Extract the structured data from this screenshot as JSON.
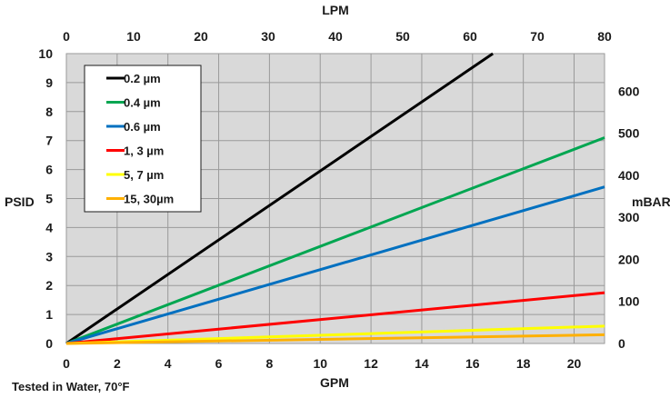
{
  "chart_data": {
    "type": "line",
    "xlabel": "GPM",
    "x2label": "LPM",
    "ylabel": "PSID",
    "y2label": "mBAR",
    "footnote": "Tested in Water, 70°F",
    "xlim": [
      0,
      21.2
    ],
    "ylim": [
      0,
      10
    ],
    "x2lim": [
      0,
      80
    ],
    "y2lim": [
      0,
      689.5
    ],
    "xticks": [
      0,
      2,
      4,
      6,
      8,
      10,
      12,
      14,
      16,
      18,
      20
    ],
    "yticks": [
      0,
      1,
      2,
      3,
      4,
      5,
      6,
      7,
      8,
      9,
      10
    ],
    "x2ticks": [
      0,
      10,
      20,
      30,
      40,
      50,
      60,
      70,
      80
    ],
    "y2ticks": [
      0,
      100,
      200,
      300,
      400,
      500,
      600
    ],
    "grid": true,
    "background": "#d9d9d9",
    "legend_position": "top-left",
    "series": [
      {
        "name": "0.2 µm",
        "color": "#000000",
        "x": [
          0,
          16.8
        ],
        "y": [
          0,
          10
        ]
      },
      {
        "name": "0.4 µm",
        "color": "#00a651",
        "x": [
          0,
          21.2
        ],
        "y": [
          0,
          7.1
        ]
      },
      {
        "name": "0.6 µm",
        "color": "#0070c0",
        "x": [
          0,
          21.2
        ],
        "y": [
          0,
          5.4
        ]
      },
      {
        "name": "1, 3 µm",
        "color": "#ff0000",
        "x": [
          0,
          21.2
        ],
        "y": [
          0,
          1.75
        ]
      },
      {
        "name": "5, 7 µm",
        "color": "#ffff00",
        "x": [
          0,
          21.2
        ],
        "y": [
          0,
          0.6
        ]
      },
      {
        "name": "15, 30µm",
        "color": "#ffb000",
        "x": [
          0,
          21.2
        ],
        "y": [
          0,
          0.3
        ]
      }
    ]
  }
}
